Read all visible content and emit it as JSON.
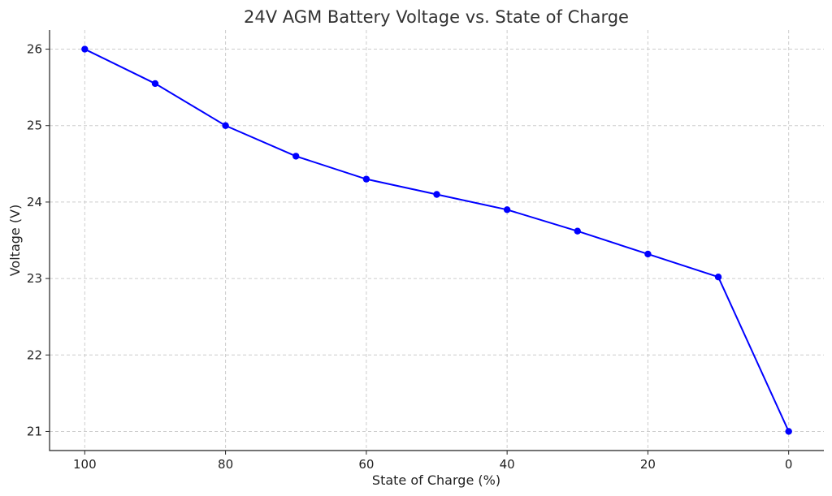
{
  "chart_data": {
    "type": "line",
    "title": "24V AGM Battery Voltage vs. State of Charge",
    "xlabel": "State of Charge (%)",
    "ylabel": "Voltage (V)",
    "x": [
      100,
      90,
      80,
      70,
      60,
      50,
      40,
      30,
      20,
      10,
      0
    ],
    "series": [
      {
        "values": [
          26.0,
          25.55,
          25.0,
          24.6,
          24.3,
          24.1,
          23.9,
          23.62,
          23.32,
          23.02,
          21.0
        ],
        "color": "#0000ff",
        "marker": "circle"
      }
    ],
    "xlim": [
      105,
      -5
    ],
    "ylim": [
      20.75,
      26.25
    ],
    "x_inverted": true,
    "xticks": [
      100,
      80,
      60,
      40,
      20,
      0
    ],
    "yticks": [
      21,
      22,
      23,
      24,
      25,
      26
    ],
    "grid": true,
    "legend": "none"
  }
}
